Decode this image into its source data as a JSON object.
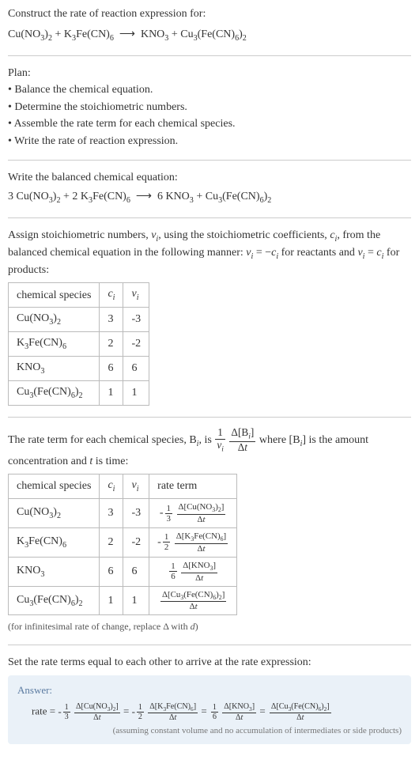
{
  "colors": {
    "text": "#333333",
    "divider": "#cccccc",
    "table_border": "#bbbbbb",
    "caption": "#555555",
    "answer_bg": "#eaf1f8",
    "answer_title": "#5a7aa0",
    "answer_caption": "#777777"
  },
  "fonts": {
    "body_pt": 14,
    "caption_pt": 12,
    "answer_title_pt": 13,
    "answer_expr_pt": 13,
    "answer_caption_pt": 11
  },
  "intro": {
    "prompt": "Construct the rate of reaction expression for:",
    "reaction_html": "Cu(NO<sub>3</sub>)<sub>2</sub> + K<sub>3</sub>Fe(CN)<sub>6</sub> &nbsp;&#10230;&nbsp; KNO<sub>3</sub> + Cu<sub>3</sub>(Fe(CN)<sub>6</sub>)<sub>2</sub>"
  },
  "plan": {
    "title": "Plan:",
    "items": [
      "Balance the chemical equation.",
      "Determine the stoichiometric numbers.",
      "Assemble the rate term for each chemical species.",
      "Write the rate of reaction expression."
    ]
  },
  "balanced": {
    "label": "Write the balanced chemical equation:",
    "equation_html": "3 Cu(NO<sub>3</sub>)<sub>2</sub> + 2 K<sub>3</sub>Fe(CN)<sub>6</sub> &nbsp;&#10230;&nbsp; 6 KNO<sub>3</sub> + Cu<sub>3</sub>(Fe(CN)<sub>6</sub>)<sub>2</sub>"
  },
  "assign_text_html": "Assign stoichiometric numbers, <i>&nu;<sub>i</sub></i>, using the stoichiometric coefficients, <i>c<sub>i</sub></i>, from the balanced chemical equation in the following manner: <i>&nu;<sub>i</sub></i> = &minus;<i>c<sub>i</sub></i> for reactants and <i>&nu;<sub>i</sub></i> = <i>c<sub>i</sub></i> for products:",
  "table1": {
    "headers": {
      "species": "chemical species",
      "ci_html": "<i>c<sub>i</sub></i>",
      "nui_html": "<i>&nu;<sub>i</sub></i>"
    },
    "rows": [
      {
        "species_html": "Cu(NO<sub>3</sub>)<sub>2</sub>",
        "ci": "3",
        "nui": "-3"
      },
      {
        "species_html": "K<sub>3</sub>Fe(CN)<sub>6</sub>",
        "ci": "2",
        "nui": "-2"
      },
      {
        "species_html": "KNO<sub>3</sub>",
        "ci": "6",
        "nui": "6"
      },
      {
        "species_html": "Cu<sub>3</sub>(Fe(CN)<sub>6</sub>)<sub>2</sub>",
        "ci": "1",
        "nui": "1"
      }
    ]
  },
  "rate_intro": {
    "pre": "The rate term for each chemical species, B",
    "mid": ", is ",
    "post_html": " where [B<sub><i>i</i></sub>] is the amount concentration and <i>t</i> is time:",
    "coef_num": "1",
    "coef_den_html": "<i>&nu;<sub>i</sub></i>",
    "delta_num_html": "&Delta;[B<sub><i>i</i></sub>]",
    "delta_den_html": "&Delta;<i>t</i>"
  },
  "table2": {
    "headers": {
      "species": "chemical species",
      "ci_html": "<i>c<sub>i</sub></i>",
      "nui_html": "<i>&nu;<sub>i</sub></i>",
      "rate": "rate term"
    },
    "rows": [
      {
        "species_html": "Cu(NO<sub>3</sub>)<sub>2</sub>",
        "ci": "3",
        "nui": "-3",
        "sign": "-",
        "cnum": "1",
        "cden": "3",
        "dnum_html": "&Delta;[Cu(NO<sub>3</sub>)<sub>2</sub>]",
        "dden_html": "&Delta;<i>t</i>"
      },
      {
        "species_html": "K<sub>3</sub>Fe(CN)<sub>6</sub>",
        "ci": "2",
        "nui": "-2",
        "sign": "-",
        "cnum": "1",
        "cden": "2",
        "dnum_html": "&Delta;[K<sub>3</sub>Fe(CN)<sub>6</sub>]",
        "dden_html": "&Delta;<i>t</i>"
      },
      {
        "species_html": "KNO<sub>3</sub>",
        "ci": "6",
        "nui": "6",
        "sign": "",
        "cnum": "1",
        "cden": "6",
        "dnum_html": "&Delta;[KNO<sub>3</sub>]",
        "dden_html": "&Delta;<i>t</i>"
      },
      {
        "species_html": "Cu<sub>3</sub>(Fe(CN)<sub>6</sub>)<sub>2</sub>",
        "ci": "1",
        "nui": "1",
        "sign": "",
        "cnum": "",
        "cden": "",
        "dnum_html": "&Delta;[Cu<sub>3</sub>(Fe(CN)<sub>6</sub>)<sub>2</sub>]",
        "dden_html": "&Delta;<i>t</i>"
      }
    ],
    "caption_html": "(for infinitesimal rate of change, replace &Delta; with <i>d</i>)"
  },
  "final_label": "Set the rate terms equal to each other to arrive at the rate expression:",
  "answer": {
    "title": "Answer:",
    "lead": "rate = ",
    "terms": [
      {
        "sign": "-",
        "cnum": "1",
        "cden": "3",
        "dnum_html": "&Delta;[Cu(NO<sub>3</sub>)<sub>2</sub>]",
        "dden_html": "&Delta;<i>t</i>"
      },
      {
        "sign": "-",
        "cnum": "1",
        "cden": "2",
        "dnum_html": "&Delta;[K<sub>3</sub>Fe(CN)<sub>6</sub>]",
        "dden_html": "&Delta;<i>t</i>"
      },
      {
        "sign": "",
        "cnum": "1",
        "cden": "6",
        "dnum_html": "&Delta;[KNO<sub>3</sub>]",
        "dden_html": "&Delta;<i>t</i>"
      },
      {
        "sign": "",
        "cnum": "",
        "cden": "",
        "dnum_html": "&Delta;[Cu<sub>3</sub>(Fe(CN)<sub>6</sub>)<sub>2</sub>]",
        "dden_html": "&Delta;<i>t</i>"
      }
    ],
    "sep": " = ",
    "caption": "(assuming constant volume and no accumulation of intermediates or side products)"
  }
}
